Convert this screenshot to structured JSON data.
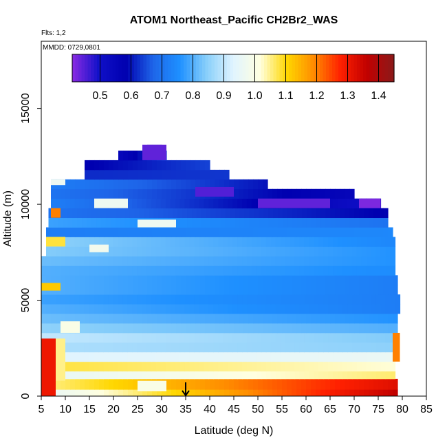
{
  "chart_data": {
    "type": "heatmap",
    "title": "ATOM1 Northeast_Pacific CH2Br2_WAS",
    "xlabel": "Latitude (deg N)",
    "ylabel": "Altitude (m)",
    "flights_note": "Flts: 1,2",
    "date_note": "MMDD: 0729,0801",
    "xlim": [
      5,
      85
    ],
    "ylim": [
      0,
      18500
    ],
    "x_ticks": [
      5,
      10,
      15,
      20,
      25,
      30,
      35,
      40,
      45,
      50,
      55,
      60,
      65,
      70,
      75,
      80,
      85
    ],
    "x_tick_labels": [
      "5",
      "10",
      "15",
      "20",
      "25",
      "30",
      "35",
      "40",
      "45",
      "50",
      "55",
      "60",
      "65",
      "70",
      "75",
      "80",
      "85"
    ],
    "y_ticks": [
      0,
      5000,
      10000,
      15000
    ],
    "y_tick_labels": [
      "0",
      "5000",
      "10000",
      "15000"
    ],
    "colorbar": {
      "range": [
        0.41,
        1.45
      ],
      "ticks": [
        0.5,
        0.6,
        0.7,
        0.8,
        0.9,
        1.0,
        1.1,
        1.2,
        1.3,
        1.4
      ],
      "tick_labels": [
        "0.5",
        "0.6",
        "0.7",
        "0.8",
        "0.9",
        "1.0",
        "1.1",
        "1.2",
        "1.3",
        "1.4"
      ],
      "colors": [
        "#8a2be2",
        "#1010c8",
        "#0000b0",
        "#1e64e8",
        "#1e90ff",
        "#87cefa",
        "#e0f4ff",
        "#ffffe0",
        "#ffd700",
        "#ff8c00",
        "#ff2000",
        "#c00000",
        "#8b1a1a"
      ]
    },
    "marker_latitude": 35,
    "bands": [
      {
        "y0": 0,
        "y1": 350,
        "x0": 5,
        "x1": 79,
        "v0": 0.95,
        "v1": 1.36
      },
      {
        "y0": 350,
        "y1": 900,
        "x0": 5,
        "x1": 79,
        "v0": 1.05,
        "v1": 1.32
      },
      {
        "y0": 900,
        "y1": 1300,
        "x0": 5,
        "x1": 78.5,
        "v0": 0.95,
        "v1": 1.06
      },
      {
        "y0": 1300,
        "y1": 1800,
        "x0": 5,
        "x1": 78.5,
        "v0": 1.08,
        "v1": 1.02
      },
      {
        "y0": 1800,
        "y1": 2300,
        "x0": 5,
        "x1": 78.5,
        "v0": 0.93,
        "v1": 0.96
      },
      {
        "y0": 2300,
        "y1": 2800,
        "x0": 5,
        "x1": 78.5,
        "v0": 0.88,
        "v1": 0.85
      },
      {
        "y0": 2800,
        "y1": 3300,
        "x0": 5,
        "x1": 78.5,
        "v0": 0.9,
        "v1": 0.84
      },
      {
        "y0": 3300,
        "y1": 3800,
        "x0": 5,
        "x1": 79,
        "v0": 0.85,
        "v1": 0.8
      },
      {
        "y0": 3800,
        "y1": 4300,
        "x0": 5,
        "x1": 79,
        "v0": 0.82,
        "v1": 0.76
      },
      {
        "y0": 4300,
        "y1": 4800,
        "x0": 5,
        "x1": 79.5,
        "v0": 0.8,
        "v1": 0.72
      },
      {
        "y0": 4800,
        "y1": 5300,
        "x0": 5,
        "x1": 79.5,
        "v0": 0.78,
        "v1": 0.72
      },
      {
        "y0": 5300,
        "y1": 5800,
        "x0": 5,
        "x1": 79,
        "v0": 0.8,
        "v1": 0.72
      },
      {
        "y0": 5800,
        "y1": 6300,
        "x0": 5,
        "x1": 79,
        "v0": 0.8,
        "v1": 0.72
      },
      {
        "y0": 6300,
        "y1": 6800,
        "x0": 5,
        "x1": 78.5,
        "v0": 0.8,
        "v1": 0.75
      },
      {
        "y0": 6800,
        "y1": 7300,
        "x0": 5,
        "x1": 78.5,
        "v0": 0.82,
        "v1": 0.76
      },
      {
        "y0": 7300,
        "y1": 7800,
        "x0": 6,
        "x1": 78.5,
        "v0": 0.84,
        "v1": 0.76
      },
      {
        "y0": 7800,
        "y1": 8300,
        "x0": 6,
        "x1": 78.5,
        "v0": 0.85,
        "v1": 0.74
      },
      {
        "y0": 8300,
        "y1": 8800,
        "x0": 6,
        "x1": 78,
        "v0": 0.72,
        "v1": 0.74
      },
      {
        "y0": 8800,
        "y1": 9300,
        "x0": 6.5,
        "x1": 77,
        "v0": 0.78,
        "v1": 0.7
      },
      {
        "y0": 9300,
        "y1": 9800,
        "x0": 6.5,
        "x1": 77,
        "v0": 0.7,
        "v1": 0.58
      },
      {
        "y0": 9800,
        "y1": 10300,
        "x0": 7,
        "x1": 75.5,
        "v0": 0.72,
        "v1": 0.5
      },
      {
        "y0": 10300,
        "y1": 10800,
        "x0": 7,
        "x1": 70,
        "v0": 0.7,
        "v1": 0.55
      },
      {
        "y0": 10800,
        "y1": 11300,
        "x0": 7,
        "x1": 52,
        "v0": 0.72,
        "v1": 0.6
      },
      {
        "y0": 11300,
        "y1": 11800,
        "x0": 14,
        "x1": 44,
        "v0": 0.62,
        "v1": 0.63
      },
      {
        "y0": 11800,
        "y1": 12300,
        "x0": 14,
        "x1": 40,
        "v0": 0.58,
        "v1": 0.64
      },
      {
        "y0": 12300,
        "y1": 12800,
        "x0": 21,
        "x1": 31,
        "v0": 0.55,
        "v1": 0.65
      },
      {
        "y0": 12800,
        "y1": 13100,
        "x0": 27,
        "x1": 30,
        "v0": 0.5,
        "v1": 0.52
      }
    ],
    "patches": [
      {
        "x0": 5,
        "x1": 8,
        "y0": 0,
        "y1": 3000,
        "v": 1.3
      },
      {
        "x0": 8,
        "x1": 10,
        "y0": 800,
        "y1": 3000,
        "v": 1.05
      },
      {
        "x0": 5,
        "x1": 9,
        "y0": 5500,
        "y1": 5900,
        "v": 1.12
      },
      {
        "x0": 6,
        "x1": 10,
        "y0": 7800,
        "y1": 8300,
        "v": 1.08
      },
      {
        "x0": 15,
        "x1": 19,
        "y0": 7500,
        "y1": 7900,
        "v": 0.98
      },
      {
        "x0": 25,
        "x1": 33,
        "y0": 8800,
        "y1": 9200,
        "v": 0.97
      },
      {
        "x0": 16,
        "x1": 23,
        "y0": 9800,
        "y1": 10300,
        "v": 0.97
      },
      {
        "x0": 7,
        "x1": 9,
        "y0": 9300,
        "y1": 9800,
        "v": 1.2
      },
      {
        "x0": 7,
        "x1": 10,
        "y0": 11000,
        "y1": 11300,
        "v": 0.97
      },
      {
        "x0": 50,
        "x1": 65,
        "y0": 9800,
        "y1": 10300,
        "v": 0.44
      },
      {
        "x0": 71,
        "x1": 75.5,
        "y0": 9800,
        "y1": 10300,
        "v": 0.42
      },
      {
        "x0": 37,
        "x1": 45,
        "y0": 10400,
        "y1": 10900,
        "v": 0.45
      },
      {
        "x0": 26,
        "x1": 31,
        "y0": 12300,
        "y1": 13100,
        "v": 0.44
      },
      {
        "x0": 9,
        "x1": 13,
        "y0": 3300,
        "y1": 3900,
        "v": 1.0
      },
      {
        "x0": 78,
        "x1": 79.5,
        "y0": 1800,
        "y1": 3300,
        "v": 1.2
      },
      {
        "x0": 25,
        "x1": 31,
        "y0": 250,
        "y1": 800,
        "v": 1.0
      }
    ]
  }
}
